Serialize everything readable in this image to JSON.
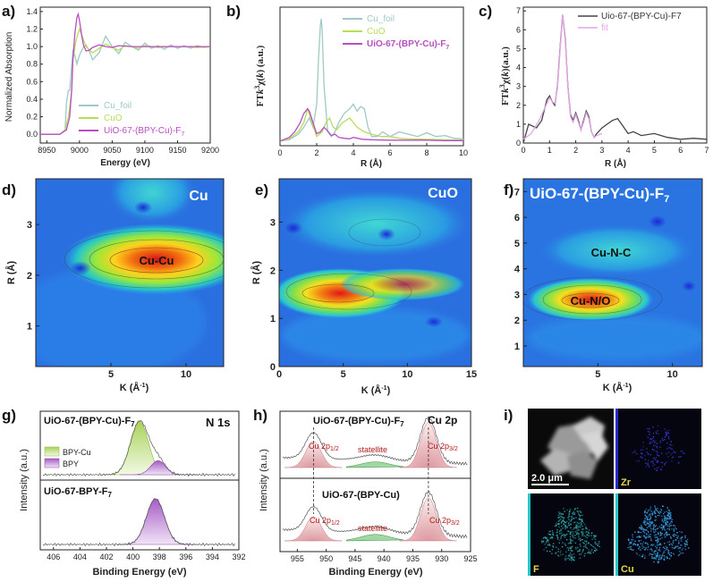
{
  "panel_labels": [
    "a)",
    "b)",
    "c)",
    "d)",
    "e)",
    "f)",
    "g)",
    "h)",
    "i)"
  ],
  "colors": {
    "cu_foil": "#9fc9c6",
    "cuo": "#b8dc5a",
    "mof": "#b84fc0",
    "fit": "#e3a6e6",
    "raw": "#444444",
    "bpy_cu": "#a9d25a",
    "bpy": "#a65cc4",
    "cu2p_peak": "#d88a90",
    "satellite": "#3fb24a"
  },
  "chart_data": [
    {
      "id": "a",
      "type": "line",
      "xlabel": "Energy (eV)",
      "ylabel": "Normalized Absorption",
      "xlim": [
        8940,
        9200
      ],
      "ylim": [
        -0.1,
        1.45
      ],
      "xticks": [
        "8950",
        "9000",
        "9050",
        "9100",
        "9150",
        "9200"
      ],
      "yticks": [
        "0.0",
        "0.2",
        "0.4",
        "0.6",
        "0.8",
        "1.0",
        "1.2",
        "1.4"
      ],
      "series": [
        {
          "name": "Cu_foil",
          "color_key": "cu_foil",
          "x": [
            8940,
            8970,
            8978,
            8980,
            8983,
            8985,
            8988,
            8990,
            8993,
            8996,
            9000,
            9005,
            9010,
            9015,
            9020,
            9030,
            9040,
            9050,
            9060,
            9070,
            9080,
            9090,
            9100,
            9110,
            9120,
            9130,
            9140,
            9150,
            9160,
            9170,
            9180,
            9190,
            9200
          ],
          "y": [
            0,
            0,
            0.05,
            0.35,
            0.5,
            0.5,
            0.78,
            0.95,
            0.9,
            0.8,
            0.9,
            0.98,
            1.02,
            0.95,
            0.85,
            0.93,
            1.12,
            1.0,
            0.92,
            1.05,
            1.0,
            0.96,
            1.04,
            0.98,
            1.01,
            0.97,
            1.02,
            0.98,
            1.01,
            0.98,
            1.01,
            0.99,
            1.0
          ]
        },
        {
          "name": "CuO",
          "color_key": "cuo",
          "x": [
            8940,
            8970,
            8978,
            8983,
            8985,
            8988,
            8990,
            8995,
            9000,
            9005,
            9010,
            9020,
            9030,
            9040,
            9050,
            9060,
            9070,
            9080,
            9090,
            9100,
            9110,
            9120,
            9140,
            9160,
            9180,
            9200
          ],
          "y": [
            0,
            0,
            0.05,
            0.2,
            0.3,
            0.5,
            0.85,
            1.08,
            1.2,
            1.1,
            1.0,
            0.93,
            0.98,
            1.03,
            0.99,
            0.96,
            1.01,
            1.0,
            0.98,
            1.01,
            1.0,
            0.99,
            1.0,
            1.0,
            0.99,
            1.0
          ]
        },
        {
          "name": "UiO-67-(BPY-Cu)-F7",
          "color_key": "mof",
          "x": [
            8940,
            8970,
            8980,
            8985,
            8988,
            8990,
            8993,
            8996,
            8998,
            9000,
            9003,
            9006,
            9010,
            9015,
            9020,
            9030,
            9040,
            9050,
            9060,
            9080,
            9100,
            9120,
            9140,
            9160,
            9180,
            9200
          ],
          "y": [
            0,
            0,
            0.05,
            0.2,
            0.5,
            0.85,
            1.15,
            1.33,
            1.37,
            1.3,
            1.15,
            1.02,
            0.95,
            0.96,
            0.99,
            1.02,
            1.0,
            0.99,
            1.01,
            1.0,
            1.0,
            1.0,
            1.0,
            1.0,
            1.0,
            1.0
          ]
        }
      ],
      "legend": "bottom-right"
    },
    {
      "id": "b",
      "type": "line",
      "xlabel": "R (Å)",
      "ylabel": "FTk³χ(k) (a.u.)",
      "xlim": [
        0,
        10
      ],
      "xticks": [
        "0",
        "2",
        "4",
        "6",
        "8",
        "10"
      ],
      "series": [
        {
          "name": "Cu_foil",
          "color_key": "cu_foil",
          "x": [
            0,
            0.5,
            1,
            1.3,
            1.6,
            1.8,
            2.0,
            2.1,
            2.2,
            2.25,
            2.3,
            2.4,
            2.6,
            2.8,
            3.0,
            3.2,
            3.5,
            3.8,
            4.0,
            4.2,
            4.4,
            4.6,
            4.8,
            5.0,
            5.3,
            5.6,
            6.0,
            6.5,
            7.0,
            7.5,
            8.0,
            8.5,
            9.0,
            9.5,
            10
          ],
          "y": [
            0,
            0.3,
            1.5,
            3,
            5,
            3,
            8,
            18,
            25,
            26.5,
            24,
            12,
            2,
            1,
            2,
            4,
            6,
            7,
            8,
            6.5,
            7.5,
            7,
            3,
            1,
            1,
            2,
            1,
            2,
            1.5,
            1,
            1.8,
            1,
            1.2,
            0.6,
            0.5
          ]
        },
        {
          "name": "CuO",
          "color_key": "cuo",
          "x": [
            0,
            0.5,
            1,
            1.3,
            1.5,
            1.7,
            2.0,
            2.3,
            2.5,
            2.7,
            2.9,
            3.1,
            3.4,
            3.8,
            4.2,
            4.6,
            5.0,
            5.5,
            6,
            6.5,
            7,
            8,
            9,
            10
          ],
          "y": [
            0,
            0.5,
            2,
            4,
            7,
            4.5,
            1,
            2,
            4,
            5,
            3,
            2.5,
            4,
            5,
            3,
            2,
            1.5,
            1,
            1,
            0.6,
            0.5,
            0.4,
            0.3,
            0.2
          ]
        },
        {
          "name": "UiO-67-(BPY-Cu)-F7",
          "color_key": "mof",
          "x": [
            0,
            0.5,
            0.8,
            1.1,
            1.3,
            1.5,
            1.6,
            1.8,
            2.0,
            2.2,
            2.4,
            2.6,
            2.8,
            3.0,
            3.2,
            3.5,
            3.8,
            4,
            4.5,
            5,
            6,
            7,
            8,
            9,
            10
          ],
          "y": [
            0,
            0.8,
            2,
            4,
            6,
            7,
            6.5,
            4,
            1.6,
            2,
            3,
            2.2,
            1.2,
            1.5,
            0.8,
            0.6,
            0.5,
            0.8,
            0.4,
            0.3,
            0.2,
            0.2,
            0.2,
            0.1,
            0.1
          ]
        }
      ],
      "legend": "top-right"
    },
    {
      "id": "c",
      "type": "line",
      "xlabel": "R (Å)",
      "ylabel": "FTk³χ(k)(a.u.)",
      "xlim": [
        0,
        7
      ],
      "xticks": [
        "0",
        "1",
        "2",
        "3",
        "4",
        "5",
        "6",
        "7"
      ],
      "series": [
        {
          "name": "Uio-67-(BPY-Cu)-F7",
          "color_key": "raw",
          "x": [
            0,
            0.2,
            0.5,
            0.7,
            0.9,
            1.0,
            1.1,
            1.2,
            1.3,
            1.4,
            1.5,
            1.6,
            1.7,
            1.8,
            1.9,
            2.0,
            2.1,
            2.2,
            2.3,
            2.4,
            2.5,
            2.6,
            2.7,
            2.8,
            3.0,
            3.2,
            3.4,
            3.6,
            3.8,
            4.0,
            4.2,
            4.5,
            5,
            5.5,
            6,
            6.5,
            7
          ],
          "y": [
            0,
            1,
            0.8,
            1.2,
            2.3,
            2.5,
            2.2,
            2,
            3,
            5,
            6.8,
            5.5,
            3,
            1.5,
            1.2,
            1.6,
            1.2,
            0.7,
            1.2,
            1.7,
            1.4,
            0.6,
            0.3,
            0.5,
            0.8,
            1,
            1.2,
            1.3,
            0.9,
            0.5,
            0.6,
            0.4,
            0.5,
            0.3,
            0.2,
            0.25,
            0.2
          ]
        },
        {
          "name": "fit",
          "color_key": "fit",
          "x": [
            0,
            0.3,
            0.6,
            0.8,
            1.0,
            1.1,
            1.2,
            1.3,
            1.4,
            1.5,
            1.6,
            1.7,
            1.8,
            1.9,
            2.0,
            2.1,
            2.2,
            2.3,
            2.4,
            2.5,
            2.6,
            2.7,
            2.8,
            3.0
          ],
          "y": [
            0.2,
            0.5,
            1.2,
            1.8,
            2.4,
            2.2,
            2.1,
            2.9,
            4.9,
            6.8,
            5.4,
            3,
            1.4,
            1.1,
            1.5,
            1.1,
            0.7,
            1.1,
            1.6,
            1.3,
            0.6,
            0.3,
            0.4,
            0.5
          ]
        }
      ],
      "ylim": [
        0,
        7.2
      ],
      "yticks": [
        "0",
        "1",
        "2",
        "3",
        "4",
        "5",
        "6",
        "7"
      ],
      "legend": "top-right"
    },
    {
      "id": "d",
      "type": "heatmap",
      "title": "Cu",
      "annotations": [
        "Cu-Cu"
      ],
      "xlabel": "K (Å⁻¹)",
      "ylabel": "R (Å)",
      "xticks": [
        "5",
        "10"
      ],
      "yticks": [
        "1",
        "2",
        "3"
      ],
      "hotspot": {
        "k": 8,
        "R": 2.25
      }
    },
    {
      "id": "e",
      "type": "heatmap",
      "title": "CuO",
      "annotations": [],
      "xlabel": "K (Å⁻¹)",
      "ylabel": "R (Å)",
      "xticks": [
        "0",
        "5",
        "10",
        "15"
      ],
      "yticks": [
        "0",
        "1",
        "2",
        "3"
      ],
      "hotspot": {
        "k": 6.5,
        "R": 1.55
      }
    },
    {
      "id": "f",
      "type": "heatmap",
      "title_main": "UiO-67-(BPY-Cu)-F",
      "title_sub": "7",
      "annotations": [
        "Cu-N-C",
        "Cu-N/O"
      ],
      "xlabel": "K (Å⁻¹)",
      "xticks": [
        "5",
        "10"
      ],
      "yticks": [
        "1",
        "2",
        "3",
        "4",
        "5",
        "6",
        "7"
      ],
      "hotspot": {
        "k": 6,
        "R": 1.5
      }
    },
    {
      "id": "g",
      "type": "line",
      "title": "N 1s",
      "xlabel": "Binding Energy (eV)",
      "ylabel": "Intensity (a.u.)",
      "xlim": [
        407,
        392
      ],
      "xticks": [
        "406",
        "404",
        "402",
        "400",
        "398",
        "396",
        "394",
        "392"
      ],
      "subplots": [
        {
          "label_main": "UiO-67-(BPY-Cu)-F",
          "label_sub": "7",
          "peaks": [
            {
              "name": "BPY-Cu",
              "center": 399.5,
              "height": 0.95,
              "fwhm": 1.6
            },
            {
              "name": "BPY",
              "center": 398.1,
              "height": 0.25,
              "fwhm": 1.3
            }
          ]
        },
        {
          "label_main": "UiO-67-BPY-F",
          "label_sub": "7",
          "peaks": [
            {
              "name": "BPY",
              "center": 398.3,
              "height": 0.8,
              "fwhm": 1.6
            }
          ]
        }
      ],
      "legend": [
        "BPY-Cu",
        "BPY"
      ]
    },
    {
      "id": "h",
      "type": "line",
      "title": "Cu 2p",
      "xlabel": "Binding Energy (eV)",
      "ylabel": "Intensity (a.u.)",
      "xlim": [
        958,
        925
      ],
      "xticks": [
        "955",
        "950",
        "945",
        "940",
        "935",
        "930",
        "925"
      ],
      "subplots": [
        {
          "label_main": "UiO-67-(BPY-Cu)-F",
          "label_sub": "7",
          "peaks": [
            {
              "name": "Cu 2p1/2",
              "center": 952.2,
              "height": 0.55
            },
            {
              "name": "satellite",
              "center": 941.5,
              "height": 0.12
            },
            {
              "name": "Cu 2p3/2",
              "center": 932.3,
              "height": 0.95
            }
          ]
        },
        {
          "label_main": "UiO-67-(BPY-Cu)",
          "label_sub": "",
          "peaks": [
            {
              "name": "Cu 2p1/2",
              "center": 952.2,
              "height": 0.45
            },
            {
              "name": "statellite",
              "center": 941.5,
              "height": 0.12
            },
            {
              "name": "Cu 2p3/2",
              "center": 932.3,
              "height": 0.8
            }
          ]
        }
      ]
    }
  ],
  "text": {
    "a_xlabel": "Energy (eV)",
    "a_ylabel": "Normalized Absorption",
    "a_leg": [
      "Cu_foil",
      "CuO",
      "UiO-67-(BPY-Cu)-F"
    ],
    "a_leg_sub": "7",
    "b_xlabel": "R (Å)",
    "b_leg": [
      "Cu_foil",
      "CuO",
      "UiO-67-(BPY-Cu)-F"
    ],
    "b_leg_sub": "7",
    "c_xlabel": "R (Å)",
    "c_leg": [
      "Uio-67-(BPY-Cu)-F7",
      "fit"
    ],
    "d_title": "Cu",
    "d_ann": "Cu-Cu",
    "e_title": "CuO",
    "f_title_main": "UiO-67-(BPY-Cu)-F",
    "f_title_sub": "7",
    "f_ann1": "Cu-N-C",
    "f_ann2": "Cu-N/O",
    "k_label_main": "K (Å",
    "k_label_sup": "-1",
    "k_label_end": ")",
    "r_label": "R (Å)",
    "g_title": "N 1s",
    "g_top_main": "UiO-67-(BPY-Cu)-F",
    "g_top_sub": "7",
    "g_bot_main": "UiO-67-BPY-F",
    "g_bot_sub": "7",
    "g_leg": [
      "BPY-Cu",
      "BPY"
    ],
    "g_xlabel": "Binding Energy (eV)",
    "g_ylabel": "Intensity (a.u.)",
    "h_title": "Cu 2p",
    "h_top_main": "UiO-67-(BPY-Cu)-F",
    "h_top_sub": "7",
    "h_bot_main": "UiO-67-(BPY-Cu)",
    "h_p12": "Cu 2p",
    "h_p12_sub": "1/2",
    "h_p32": "Cu 2p",
    "h_p32_sub": "3/2",
    "h_sat_top": "statellite",
    "h_sat_bot": "statellite",
    "h_xlabel": "Binding Energy (eV)",
    "h_ylabel": "Intensity (a.u.)",
    "i_scale": "2.0 μm",
    "i_labels": [
      "Zr",
      "F",
      "Cu"
    ]
  }
}
